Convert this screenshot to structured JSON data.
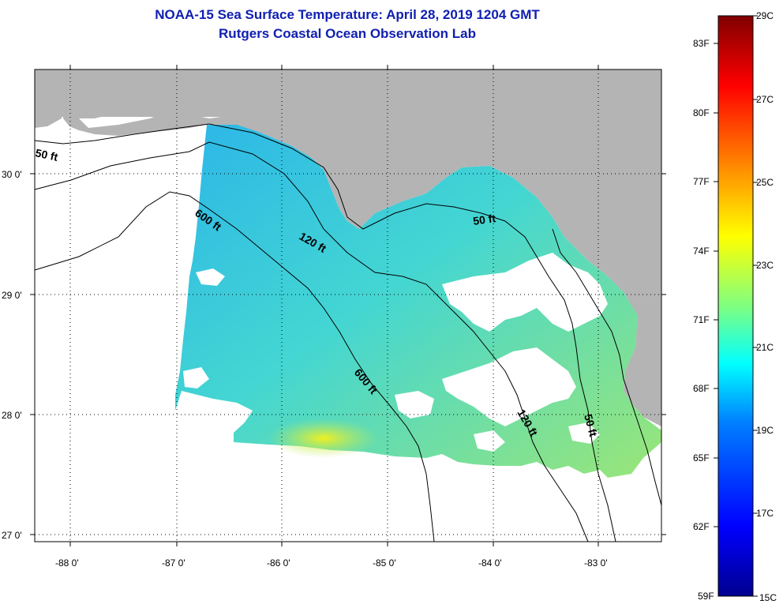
{
  "title_line1": "NOAA-15 Sea Surface Temperature:  April 28, 2019 1204 GMT",
  "title_line2": "Rutgers Coastal Ocean Observation Lab",
  "lat_labels": [
    "30 0'",
    "29 0'",
    "28 0'",
    "27 0'"
  ],
  "lon_labels": [
    "-88 0'",
    "-87 0'",
    "-86 0'",
    "-85 0'",
    "-84 0'",
    "-83 0'"
  ],
  "contour_labels": {
    "c50_west": "50 ft",
    "c600_north": "600 ft",
    "c120_north": "120 ft",
    "c50_north": "50 ft",
    "c600_south": "600 ft",
    "c120_south": "120 ft",
    "c50_south": "50 ft"
  },
  "colorbar": {
    "fahrenheit": [
      "83F",
      "80F",
      "77F",
      "74F",
      "71F",
      "68F",
      "65F",
      "62F",
      "59F"
    ],
    "celsius": [
      "29C",
      "27C",
      "25C",
      "23C",
      "21C",
      "19C",
      "17C",
      "15C"
    ],
    "colors": [
      "#800000",
      "#ff0000",
      "#ff8000",
      "#ffff00",
      "#80ff80",
      "#00ffff",
      "#0080ff",
      "#0000ff",
      "#00008f"
    ]
  },
  "colors": {
    "land": "#b4b4b4",
    "title": "#1020b0"
  }
}
